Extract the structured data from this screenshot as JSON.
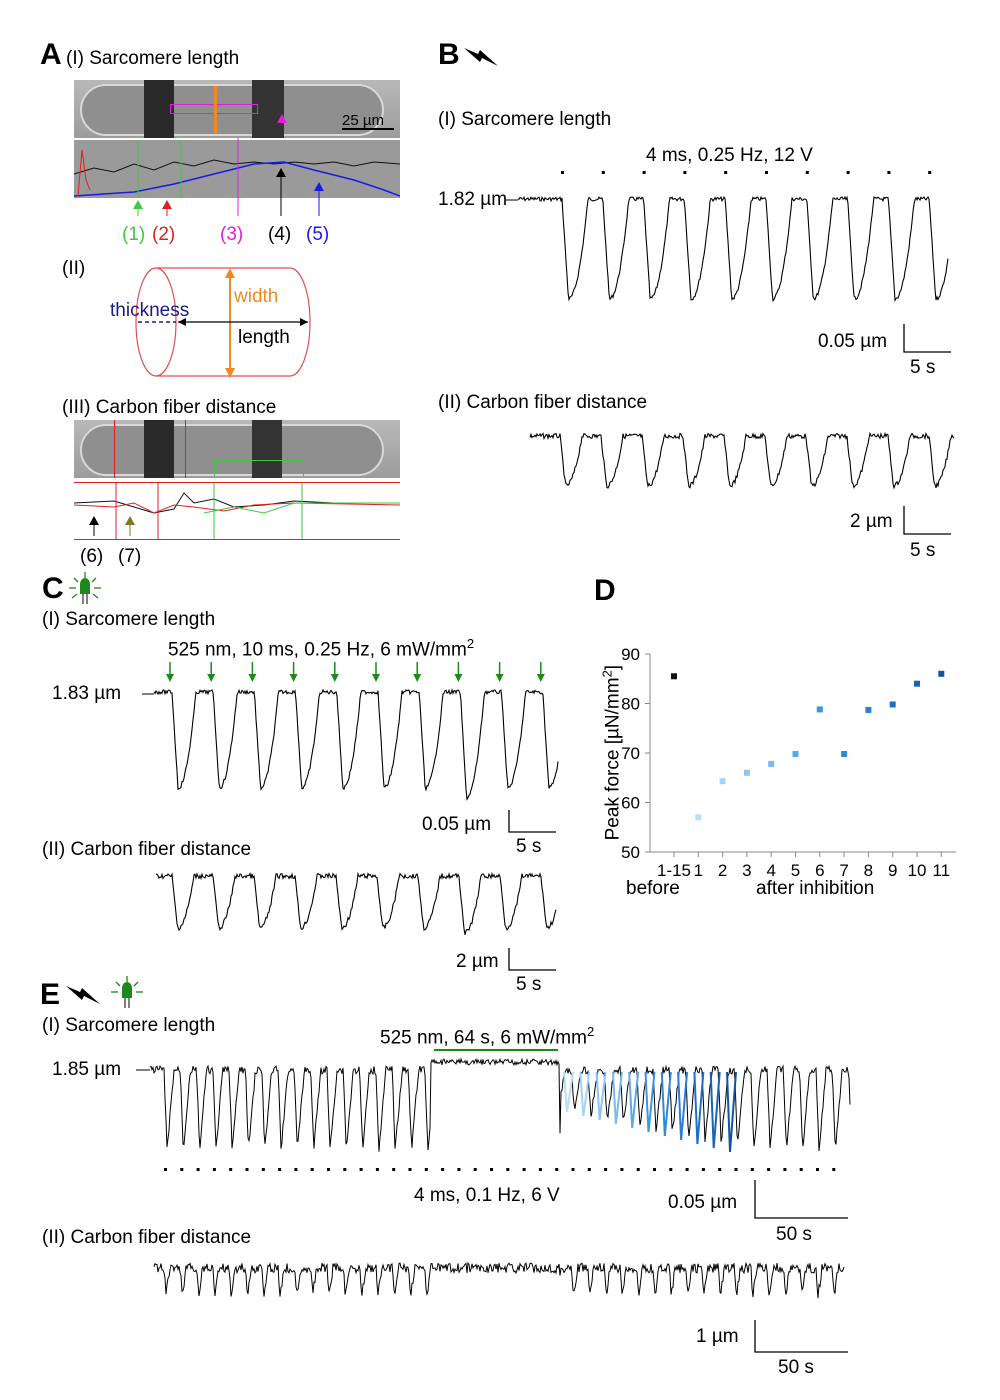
{
  "colors": {
    "trace": "#000000",
    "green_led": "#1b8a1b",
    "orange": "#f08a1c",
    "magenta": "#e020e0",
    "blue": "#1a1ae8",
    "red": "#e02020",
    "lime": "#3ec93e",
    "navy": "#1a1a8a"
  },
  "panelA": {
    "letter": "A",
    "title": "(I) Sarcomere length",
    "scale_bar": "25 µm",
    "markers": [
      {
        "label": "(1)",
        "color": "#3ec93e"
      },
      {
        "label": "(2)",
        "color": "#e02020"
      },
      {
        "label": "(3)",
        "color": "#e020e0"
      },
      {
        "label": "(4)",
        "color": "#000000"
      },
      {
        "label": "(5)",
        "color": "#1a1ae8"
      }
    ],
    "sub2": "(II)",
    "thickness": "thickness",
    "width": "width",
    "length": "length",
    "sub3": "(III) Carbon fiber distance",
    "markers3": [
      {
        "label": "(6)",
        "color": "#000000"
      },
      {
        "label": "(7)",
        "color": "#7a7a2a"
      }
    ]
  },
  "panelB": {
    "letter": "B",
    "icon": "lightning-icon",
    "sub1": "(I) Sarcomere length",
    "stim": "4 ms, 0.25 Hz, 12 V",
    "baseline": "1.82 µm",
    "scale_y": "0.05 µm",
    "scale_x": "5 s",
    "sub2": "(II) Carbon fiber distance",
    "scale_y2": "2 µm",
    "scale_x2": "5 s"
  },
  "panelC": {
    "letter": "C",
    "icon": "green-led-icon",
    "sub1": "(I) Sarcomere length",
    "stim": "525 nm, 10 ms, 0.25 Hz, 6 mW/mm",
    "stim_sup": "2",
    "baseline": "1.83 µm",
    "scale_y": "0.05 µm",
    "scale_x": "5 s",
    "sub2": "(II) Carbon fiber distance",
    "scale_y2": "2 µm",
    "scale_x2": "5 s"
  },
  "panelD": {
    "letter": "D",
    "ylabel": "Peak force [µN/mm",
    "ylabel_sup": "2",
    "ylabel_end": "]",
    "before": "before",
    "after": "after inhibition"
  },
  "chart_data": {
    "type": "scatter",
    "title": "",
    "xlabel": "before / after inhibition",
    "ylabel": "Peak force [µN/mm2]",
    "ylim": [
      50,
      90
    ],
    "yticks": [
      50,
      60,
      70,
      80,
      90
    ],
    "categories": [
      "1-15",
      "1",
      "2",
      "3",
      "4",
      "5",
      "6",
      "7",
      "8",
      "9",
      "10",
      "11"
    ],
    "values": [
      85.5,
      57,
      64.3,
      66,
      67.8,
      69.8,
      78.8,
      69.8,
      78.7,
      79.8,
      84,
      86
    ],
    "colors": [
      "#111111",
      "#b9dcf7",
      "#a6d2f4",
      "#8fc5f0",
      "#7ab9ed",
      "#5aaaea",
      "#3b96e0",
      "#2f8ad8",
      "#2a7fd0",
      "#1f70c2",
      "#1763b5",
      "#0f55a6"
    ]
  },
  "panelE": {
    "letter": "E",
    "icon1": "lightning-icon",
    "icon2": "green-led-icon",
    "sub1": "(I) Sarcomere length",
    "light": "525 nm, 64 s, 6 mW/mm",
    "light_sup": "2",
    "baseline": "1.85 µm",
    "stim": "4 ms, 0.1 Hz, 6 V",
    "scale_y": "0.05 µm",
    "scale_x": "50 s",
    "sub2": "(II) Carbon fiber distance",
    "scale_y2": "1 µm",
    "scale_x2": "50 s"
  }
}
